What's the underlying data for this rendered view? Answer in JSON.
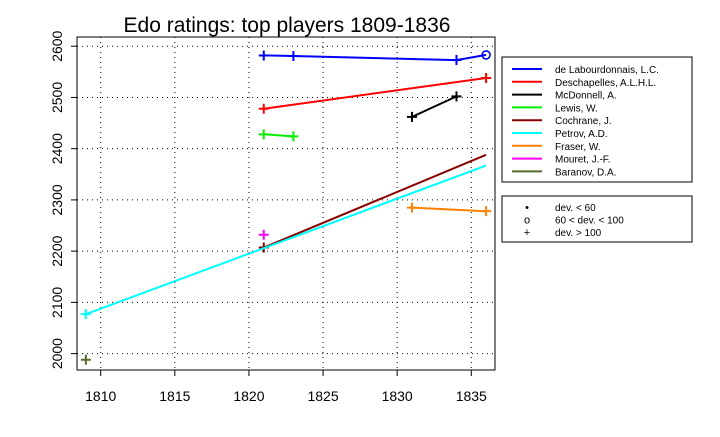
{
  "chart_data": {
    "type": "line",
    "title": "Edo ratings: top players 1809-1836",
    "xlabel": "",
    "ylabel": "",
    "xlim": [
      1808.4,
      1836.6
    ],
    "ylim": [
      1968,
      2618
    ],
    "xticks": [
      1810,
      1815,
      1820,
      1825,
      1830,
      1835
    ],
    "yticks": [
      2000,
      2100,
      2200,
      2300,
      2400,
      2500,
      2600
    ],
    "grid": true,
    "series": [
      {
        "name": "de Labourdonnais, L.C.",
        "color": "#0000ff",
        "points": [
          [
            1821,
            2582
          ],
          [
            1823,
            2581
          ],
          [
            1834,
            2573
          ],
          [
            1836,
            2583
          ]
        ],
        "markers": [
          "+",
          "+",
          "+",
          "o"
        ]
      },
      {
        "name": "Deschapelles, A.L.H.L.",
        "color": "#ff0000",
        "points": [
          [
            1821,
            2478
          ],
          [
            1836,
            2538
          ]
        ],
        "markers": [
          "+",
          "+"
        ]
      },
      {
        "name": "McDonnell, A.",
        "color": "#000000",
        "points": [
          [
            1831,
            2462
          ],
          [
            1834,
            2502
          ]
        ],
        "markers": [
          "+",
          "+"
        ]
      },
      {
        "name": "Lewis, W.",
        "color": "#00ee00",
        "points": [
          [
            1821,
            2428
          ],
          [
            1823,
            2424
          ]
        ],
        "markers": [
          "+",
          "+"
        ]
      },
      {
        "name": "Cochrane, J.",
        "color": "#8b0000",
        "points": [
          [
            1821,
            2207
          ],
          [
            1836,
            2388
          ]
        ],
        "markers": [
          "+",
          "none"
        ]
      },
      {
        "name": "Petrov, A.D.",
        "color": "#00ffff",
        "points": [
          [
            1809,
            2077
          ],
          [
            1836,
            2367
          ]
        ],
        "markers": [
          "+",
          "none"
        ]
      },
      {
        "name": "Fraser, W.",
        "color": "#ff8000",
        "points": [
          [
            1831,
            2285
          ],
          [
            1836,
            2278
          ]
        ],
        "markers": [
          "+",
          "+"
        ]
      },
      {
        "name": "Mouret, J.-F.",
        "color": "#ff00ff",
        "points": [
          [
            1821,
            2232
          ]
        ],
        "markers": [
          "+"
        ]
      },
      {
        "name": "Baranov, D.A.",
        "color": "#556b2f",
        "points": [
          [
            1809,
            1988
          ]
        ],
        "markers": [
          "+"
        ]
      }
    ],
    "legend_placement": "right",
    "marker_legend": [
      {
        "symbol": "•",
        "label": "dev. < 60"
      },
      {
        "symbol": "o",
        "label": "60 < dev. < 100"
      },
      {
        "symbol": "+",
        "label": "dev. > 100"
      }
    ]
  }
}
